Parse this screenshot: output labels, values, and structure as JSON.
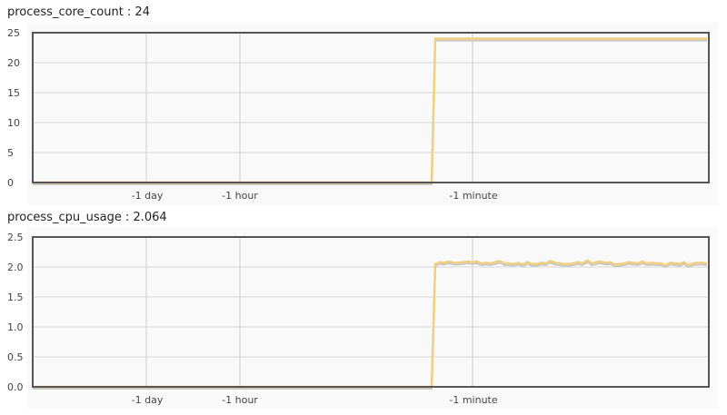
{
  "chart_data": [
    {
      "type": "line",
      "title": "process_core_count : 24",
      "ylim": [
        0,
        25
      ],
      "yticks": [
        "0",
        "5",
        "10",
        "15",
        "20",
        "25"
      ],
      "ytick_values": [
        0,
        5,
        10,
        15,
        20,
        25
      ],
      "xticks": [
        "-1 day",
        "-1 hour",
        "-1 minute"
      ],
      "grid": true,
      "color": "#f0d080",
      "series": [
        {
          "values_before_step": [
            0
          ],
          "values_after_step": [
            24,
            24,
            24,
            24,
            24,
            24
          ]
        }
      ]
    },
    {
      "type": "line",
      "title": "process_cpu_usage : 2.064",
      "ylim": [
        0,
        2.5
      ],
      "yticks": [
        "0.0",
        "0.5",
        "1.0",
        "1.5",
        "2.0",
        "2.5"
      ],
      "ytick_values": [
        0,
        0.5,
        1.0,
        1.5,
        2.0,
        2.5
      ],
      "xticks": [
        "-1 day",
        "-1 hour",
        "-1 minute"
      ],
      "grid": true,
      "color": "#f0d080",
      "series": [
        {
          "values_before_step": [
            0
          ],
          "values_after_step": [
            2.05,
            2.08,
            2.07,
            2.09,
            2.07,
            2.07,
            2.08,
            2.09,
            2.08,
            2.09,
            2.06,
            2.07,
            2.06,
            2.08,
            2.1,
            2.06,
            2.06,
            2.05,
            2.07,
            2.04,
            2.08,
            2.05,
            2.05,
            2.07,
            2.06,
            2.1,
            2.07,
            2.06,
            2.05,
            2.05,
            2.06,
            2.08,
            2.06,
            2.11,
            2.06,
            2.08,
            2.09,
            2.07,
            2.08,
            2.04,
            2.05,
            2.06,
            2.08,
            2.07,
            2.06,
            2.09,
            2.06,
            2.07,
            2.06,
            2.06,
            2.03,
            2.07,
            2.06,
            2.05,
            2.08,
            2.03,
            2.06,
            2.07,
            2.07,
            2.06
          ]
        }
      ]
    }
  ]
}
